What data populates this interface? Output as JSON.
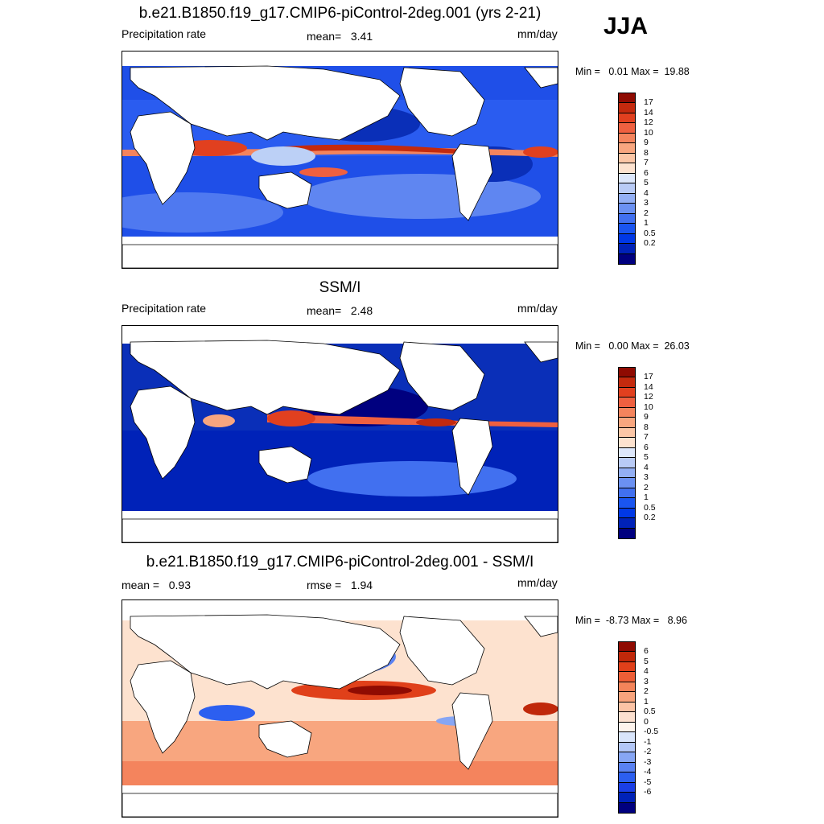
{
  "season": "JJA",
  "palettes": {
    "precip": [
      "#00007f",
      "#0022b8",
      "#0038e6",
      "#1a55f0",
      "#4170f0",
      "#6b91f2",
      "#93aff4",
      "#b9cbf6",
      "#dde7fb",
      "#fde2cf",
      "#fbc6a6",
      "#f8a67f",
      "#f4845d",
      "#ef6040",
      "#e1401f",
      "#c42a0e",
      "#8f0b02"
    ],
    "diff": [
      "#00007f",
      "#0022b8",
      "#1a3fe6",
      "#2c5ff0",
      "#5a82f2",
      "#87a6f4",
      "#b3c7f7",
      "#d9e5fb",
      "#fdf3ec",
      "#fce0cf",
      "#fbc3a5",
      "#f8a47d",
      "#f4845a",
      "#ee5e36",
      "#e0401a",
      "#c0280a",
      "#8f0b02"
    ]
  },
  "panels": [
    {
      "id": "model",
      "title": "b.e21.B1850.f19_g17.CMIP6-piControl-2deg.001 (yrs 2-21)",
      "left": "Precipitation rate",
      "center": "mean=   3.41",
      "right": "mm/day",
      "minmax": "Min =   0.01 Max =  19.88",
      "palette": "precip",
      "colorbar_labels": [
        "17",
        "14",
        "12",
        "10",
        "9",
        "8",
        "7",
        "6",
        "5",
        "4",
        "3",
        "2",
        "1",
        "0.5",
        "0.2"
      ]
    },
    {
      "id": "obs",
      "title": "SSM/I",
      "left": "Precipitation rate",
      "center": "mean=   2.48",
      "right": "mm/day",
      "minmax": "Min =   0.00 Max =  26.03",
      "palette": "precip",
      "colorbar_labels": [
        "17",
        "14",
        "12",
        "10",
        "9",
        "8",
        "7",
        "6",
        "5",
        "4",
        "3",
        "2",
        "1",
        "0.5",
        "0.2"
      ]
    },
    {
      "id": "diff",
      "title": "b.e21.B1850.f19_g17.CMIP6-piControl-2deg.001 - SSM/I",
      "left": "mean =   0.93",
      "center": "rmse =   1.94",
      "right": "mm/day",
      "minmax": "Min =  -8.73 Max =   8.96",
      "palette": "diff",
      "colorbar_labels": [
        "6",
        "5",
        "4",
        "3",
        "2",
        "1",
        "0.5",
        "0",
        "-0.5",
        "-1",
        "-2",
        "-3",
        "-4",
        "-5",
        "-6"
      ]
    }
  ]
}
